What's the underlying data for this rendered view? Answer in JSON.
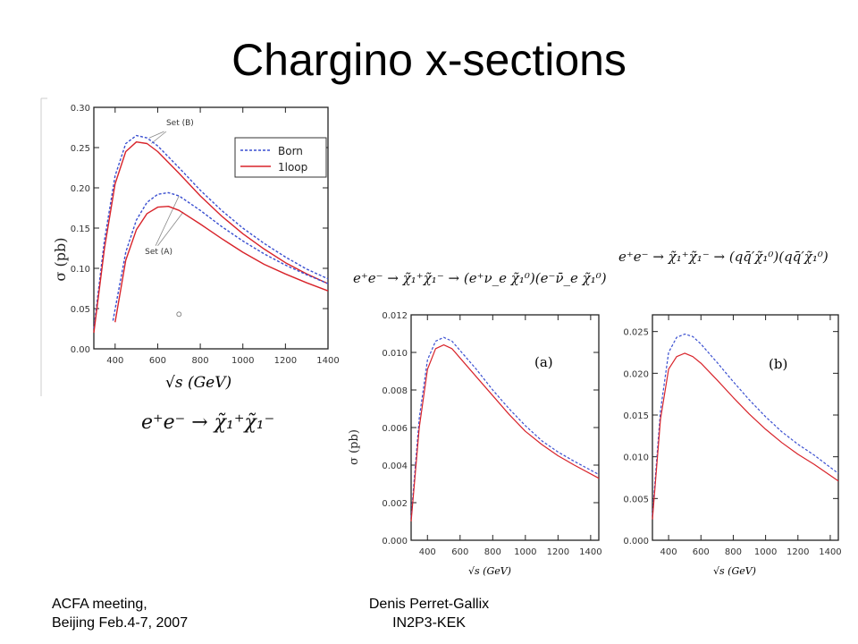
{
  "slide": {
    "title": "Chargino x-sections",
    "footer_left_line1": "ACFA meeting,",
    "footer_left_line2": "Beijing Feb.4-7, 2007",
    "footer_center_line1": "Denis Perret-Gallix",
    "footer_center_line2": "IN2P3-KEK"
  },
  "equations": {
    "eq_main": "e⁺e⁻ → χ̃₁⁺χ̃₁⁻",
    "eq_a": "e⁺e⁻ → χ̃₁⁺χ̃₁⁻ → (e⁺ν_e χ̃₁⁰)(e⁻ν̄_e χ̃₁⁰)",
    "eq_b": "e⁺e⁻ → χ̃₁⁺χ̃₁⁻ → (qq̄′χ̃₁⁰)(qq̄′χ̃₁⁰)"
  },
  "colors": {
    "born": "#3a4fd0",
    "oneloop": "#d8232a",
    "axis": "#222222",
    "callout": "#888888"
  },
  "chart_data": [
    {
      "type": "line",
      "xlabel": "√s (GeV)",
      "ylabel": "σ (pb)",
      "xlim": [
        300,
        1400
      ],
      "ylim": [
        0,
        0.3
      ],
      "xticks": [
        "400",
        "600",
        "800",
        "1000",
        "1200",
        "1400"
      ],
      "yticks": [
        "0.00",
        "0.05",
        "0.10",
        "0.15",
        "0.20",
        "0.25",
        "0.30"
      ],
      "legend": {
        "position": "top-right",
        "entries": [
          "Born",
          "1loop"
        ]
      },
      "annotations": [
        "Set (B)",
        "Set (A)"
      ],
      "series": [
        {
          "name": "Born",
          "set": "Set (B)",
          "style": "dashed",
          "x": [
            300,
            350,
            400,
            450,
            500,
            550,
            600,
            700,
            800,
            900,
            1000,
            1100,
            1200,
            1300,
            1400
          ],
          "y": [
            0.025,
            0.135,
            0.215,
            0.255,
            0.265,
            0.262,
            0.252,
            0.225,
            0.197,
            0.172,
            0.15,
            0.131,
            0.114,
            0.099,
            0.087
          ]
        },
        {
          "name": "1loop",
          "set": "Set (B)",
          "style": "solid",
          "x": [
            300,
            350,
            400,
            450,
            500,
            550,
            600,
            700,
            800,
            900,
            1000,
            1100,
            1200,
            1300,
            1400
          ],
          "y": [
            0.02,
            0.125,
            0.205,
            0.245,
            0.257,
            0.255,
            0.245,
            0.218,
            0.19,
            0.165,
            0.143,
            0.124,
            0.107,
            0.093,
            0.081
          ]
        },
        {
          "name": "Born",
          "set": "Set (A)",
          "style": "dashed",
          "x": [
            390,
            450,
            500,
            550,
            600,
            650,
            700,
            800,
            900,
            1000,
            1100,
            1200,
            1300,
            1400
          ],
          "y": [
            0.035,
            0.12,
            0.16,
            0.182,
            0.192,
            0.194,
            0.19,
            0.172,
            0.152,
            0.134,
            0.118,
            0.104,
            0.092,
            0.081
          ]
        },
        {
          "name": "1loop",
          "set": "Set (A)",
          "style": "solid",
          "x": [
            400,
            450,
            500,
            550,
            600,
            650,
            700,
            800,
            900,
            1000,
            1100,
            1200,
            1300,
            1400
          ],
          "y": [
            0.033,
            0.11,
            0.148,
            0.168,
            0.176,
            0.177,
            0.172,
            0.155,
            0.137,
            0.12,
            0.105,
            0.093,
            0.082,
            0.072
          ]
        }
      ]
    },
    {
      "type": "line",
      "panel_label": "(a)",
      "xlabel": "√s (GeV)",
      "ylabel": "σ (pb)",
      "xlim": [
        300,
        1450
      ],
      "ylim": [
        0,
        0.012
      ],
      "xticks": [
        "400",
        "600",
        "800",
        "1000",
        "1200",
        "1400"
      ],
      "yticks": [
        "0.000",
        "0.002",
        "0.004",
        "0.006",
        "0.008",
        "0.010",
        "0.012"
      ],
      "series": [
        {
          "name": "Born",
          "style": "dashed",
          "x": [
            300,
            350,
            400,
            450,
            500,
            550,
            600,
            700,
            800,
            900,
            1000,
            1100,
            1200,
            1300,
            1450
          ],
          "y": [
            0.0012,
            0.0065,
            0.0096,
            0.0106,
            0.0108,
            0.0106,
            0.0101,
            0.0091,
            0.008,
            0.007,
            0.0061,
            0.0053,
            0.0047,
            0.0042,
            0.0035
          ]
        },
        {
          "name": "1loop",
          "style": "solid",
          "x": [
            300,
            350,
            400,
            450,
            500,
            550,
            600,
            700,
            800,
            900,
            1000,
            1100,
            1200,
            1300,
            1450
          ],
          "y": [
            0.001,
            0.006,
            0.0091,
            0.0102,
            0.0104,
            0.0102,
            0.0097,
            0.0087,
            0.0077,
            0.0067,
            0.0058,
            0.0051,
            0.0045,
            0.004,
            0.0033
          ]
        }
      ]
    },
    {
      "type": "line",
      "panel_label": "(b)",
      "xlabel": "√s (GeV)",
      "ylabel": "",
      "xlim": [
        300,
        1450
      ],
      "ylim": [
        0,
        0.027
      ],
      "xticks": [
        "400",
        "600",
        "800",
        "1000",
        "1200",
        "1400"
      ],
      "yticks": [
        "0.000",
        "0.005",
        "0.010",
        "0.015",
        "0.020",
        "0.025"
      ],
      "series": [
        {
          "name": "Born",
          "style": "dashed",
          "x": [
            300,
            350,
            400,
            450,
            500,
            550,
            600,
            700,
            800,
            900,
            1000,
            1100,
            1200,
            1300,
            1450
          ],
          "y": [
            0.003,
            0.0155,
            0.0225,
            0.0243,
            0.0247,
            0.0244,
            0.0235,
            0.0213,
            0.019,
            0.0168,
            0.0148,
            0.013,
            0.0115,
            0.0102,
            0.008
          ]
        },
        {
          "name": "1loop",
          "style": "solid",
          "x": [
            300,
            350,
            400,
            450,
            500,
            550,
            600,
            700,
            800,
            900,
            1000,
            1100,
            1200,
            1300,
            1450
          ],
          "y": [
            0.0025,
            0.0145,
            0.0205,
            0.022,
            0.0224,
            0.022,
            0.0212,
            0.0192,
            0.0171,
            0.0151,
            0.0133,
            0.0117,
            0.0103,
            0.0091,
            0.0071
          ]
        }
      ]
    }
  ]
}
